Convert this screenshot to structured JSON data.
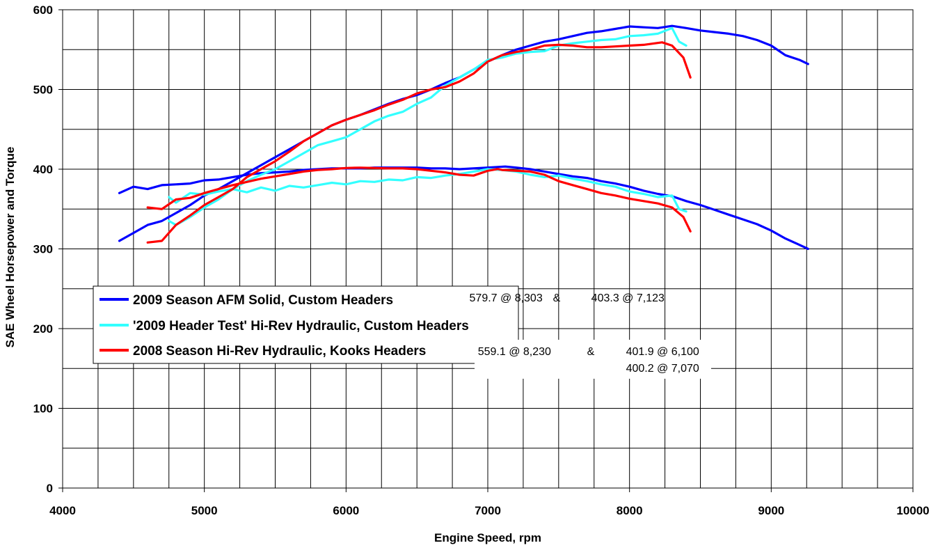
{
  "chart_data": {
    "type": "line",
    "title": "",
    "xlabel": "Engine Speed, rpm",
    "ylabel": "SAE Wheel Horsepower and Torque",
    "xlim": [
      4000,
      10000
    ],
    "ylim": [
      0,
      600
    ],
    "xticks": [
      4000,
      5000,
      6000,
      7000,
      8000,
      9000,
      10000
    ],
    "yticks": [
      0,
      100,
      200,
      300,
      400,
      500,
      600
    ],
    "x_minor_step": 250,
    "y_minor_step": 50,
    "grid": true,
    "legend_position": "center-left",
    "series": [
      {
        "name": "2009 Season AFM Solid, Custom Headers",
        "color": "#0000ff",
        "hp": {
          "x": [
            4400,
            4500,
            4600,
            4700,
            4800,
            4900,
            5000,
            5100,
            5200,
            5300,
            5400,
            5500,
            5600,
            5700,
            5800,
            5900,
            6000,
            6100,
            6200,
            6300,
            6400,
            6500,
            6600,
            6700,
            6800,
            6900,
            7000,
            7100,
            7200,
            7300,
            7400,
            7500,
            7600,
            7700,
            7800,
            7900,
            8000,
            8100,
            8200,
            8300,
            8400,
            8500,
            8600,
            8700,
            8800,
            8900,
            9000,
            9100,
            9200,
            9260
          ],
          "y": [
            310,
            320,
            330,
            335,
            345,
            355,
            367,
            375,
            385,
            395,
            405,
            415,
            425,
            435,
            445,
            455,
            462,
            468,
            475,
            482,
            488,
            493,
            500,
            508,
            515,
            525,
            535,
            543,
            550,
            555,
            560,
            563,
            567,
            571,
            573,
            576,
            579,
            578,
            577,
            579.7,
            577,
            574,
            572,
            570,
            567,
            562,
            555,
            543,
            537,
            532
          ]
        },
        "torque": {
          "x": [
            4400,
            4500,
            4600,
            4700,
            4800,
            4900,
            5000,
            5100,
            5200,
            5300,
            5400,
            5500,
            5600,
            5700,
            5800,
            5900,
            6000,
            6100,
            6200,
            6300,
            6400,
            6500,
            6600,
            6700,
            6800,
            6900,
            7000,
            7123,
            7200,
            7300,
            7400,
            7500,
            7600,
            7700,
            7800,
            7900,
            8000,
            8100,
            8200,
            8300,
            8400,
            8500,
            8600,
            8700,
            8800,
            8900,
            9000,
            9100,
            9200,
            9260
          ],
          "y": [
            370,
            378,
            375,
            380,
            381,
            382,
            386,
            387,
            390,
            393,
            395,
            396,
            397,
            399,
            400,
            401,
            401,
            401,
            402,
            402,
            402,
            402,
            401,
            401,
            400,
            401,
            402,
            403.3,
            402,
            400,
            397,
            394,
            391,
            389,
            385,
            382,
            378,
            373,
            369,
            366,
            360,
            355,
            349,
            343,
            337,
            331,
            323,
            313,
            305,
            300
          ]
        }
      },
      {
        "name": "'2009 Header Test' Hi-Rev Hydraulic, Custom Headers",
        "color": "#33ffff",
        "hp": {
          "x": [
            4750,
            4800,
            4900,
            5000,
            5100,
            5200,
            5300,
            5400,
            5500,
            5600,
            5700,
            5800,
            5900,
            6000,
            6100,
            6200,
            6300,
            6400,
            6500,
            6600,
            6700,
            6800,
            6900,
            7000,
            7100,
            7200,
            7300,
            7400,
            7500,
            7600,
            7700,
            7800,
            7900,
            8000,
            8100,
            8200,
            8300,
            8350,
            8400
          ],
          "y": [
            335,
            330,
            340,
            352,
            362,
            375,
            385,
            393,
            400,
            410,
            420,
            430,
            435,
            440,
            450,
            460,
            467,
            472,
            482,
            490,
            505,
            515,
            525,
            537,
            540,
            545,
            547,
            548,
            555,
            558,
            560,
            562,
            563,
            567,
            568,
            570,
            577,
            560,
            555
          ]
        },
        "torque": {
          "x": [
            4750,
            4800,
            4900,
            5000,
            5100,
            5200,
            5300,
            5400,
            5500,
            5600,
            5700,
            5800,
            5900,
            6000,
            6100,
            6200,
            6300,
            6400,
            6500,
            6600,
            6700,
            6800,
            6900,
            7000,
            7100,
            7200,
            7300,
            7400,
            7500,
            7600,
            7700,
            7800,
            7900,
            8000,
            8100,
            8200,
            8300,
            8350,
            8400
          ],
          "y": [
            365,
            358,
            370,
            368,
            372,
            375,
            371,
            377,
            373,
            379,
            377,
            380,
            383,
            381,
            385,
            384,
            387,
            386,
            390,
            389,
            392,
            394,
            397,
            400,
            399,
            397,
            393,
            390,
            392,
            388,
            385,
            381,
            378,
            372,
            369,
            365,
            367,
            350,
            347
          ]
        }
      },
      {
        "name": "2008 Season Hi-Rev Hydraulic, Kooks Headers",
        "color": "#ff0000",
        "hp": {
          "x": [
            4600,
            4700,
            4800,
            4900,
            5000,
            5100,
            5200,
            5300,
            5400,
            5500,
            5600,
            5700,
            5800,
            5900,
            6000,
            6100,
            6200,
            6300,
            6400,
            6500,
            6600,
            6700,
            6800,
            6900,
            7000,
            7100,
            7200,
            7300,
            7400,
            7500,
            7600,
            7700,
            7800,
            7900,
            8000,
            8100,
            8230,
            8300,
            8380,
            8430
          ],
          "y": [
            308,
            310,
            330,
            342,
            355,
            365,
            375,
            390,
            400,
            410,
            422,
            435,
            445,
            455,
            462,
            468,
            474,
            481,
            487,
            495,
            500,
            503,
            510,
            520,
            535,
            543,
            547,
            550,
            555,
            556,
            555,
            553,
            553,
            554,
            555,
            556,
            559.1,
            555,
            540,
            515
          ]
        },
        "torque": {
          "x": [
            4600,
            4700,
            4800,
            4900,
            5000,
            5100,
            5200,
            5300,
            5400,
            5500,
            5600,
            5700,
            5800,
            5900,
            6000,
            6100,
            6200,
            6300,
            6400,
            6500,
            6600,
            6700,
            6800,
            6900,
            7000,
            7070,
            7100,
            7200,
            7300,
            7400,
            7500,
            7600,
            7700,
            7800,
            7900,
            8000,
            8100,
            8200,
            8300,
            8380,
            8430
          ],
          "y": [
            352,
            350,
            362,
            364,
            370,
            375,
            380,
            384,
            388,
            391,
            394,
            397,
            399,
            400,
            401.5,
            401.9,
            401.5,
            401,
            401,
            400,
            398,
            396,
            393,
            392,
            398,
            400.2,
            399,
            398,
            397,
            393,
            385,
            380,
            375,
            370,
            367,
            363,
            360,
            357,
            352,
            340,
            322
          ]
        }
      }
    ],
    "annotations": [
      {
        "text": "579.7 @ 8,303",
        "anchor_rpm": 6870,
        "anchor_value": 234
      },
      {
        "text": "&",
        "anchor_rpm": 7460,
        "anchor_value": 234
      },
      {
        "text": "403.3 @ 7,123",
        "anchor_rpm": 7730,
        "anchor_value": 234
      },
      {
        "text": "559.1 @ 8,230",
        "anchor_rpm": 6930,
        "anchor_value": 167
      },
      {
        "text": "&",
        "anchor_rpm": 7700,
        "anchor_value": 167
      },
      {
        "text": "401.9 @ 6,100",
        "anchor_rpm": 7975,
        "anchor_value": 167
      },
      {
        "text": "400.2 @ 7,070",
        "anchor_rpm": 7975,
        "anchor_value": 146
      }
    ]
  }
}
